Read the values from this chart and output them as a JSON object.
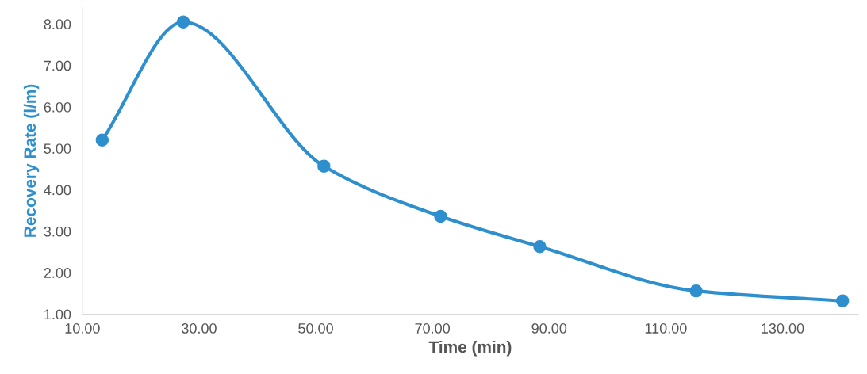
{
  "chart_data": {
    "type": "line",
    "xlabel": "Time (min)",
    "ylabel": "Recovery Rate (l/m)",
    "x": [
      13.4,
      27.3,
      51.4,
      71.4,
      88.4,
      115.2,
      140.3
    ],
    "series": [
      {
        "color": "#2e8fcf",
        "values": [
          5.2,
          8.05,
          4.57,
          3.36,
          2.63,
          1.56,
          1.32
        ]
      }
    ],
    "xlim": [
      10,
      143
    ],
    "ylim": [
      1,
      8.4
    ],
    "xticks": [
      {
        "value": 10,
        "label": "10.00"
      },
      {
        "value": 30,
        "label": "30.00"
      },
      {
        "value": 50,
        "label": "50.00"
      },
      {
        "value": 70,
        "label": "70.00"
      },
      {
        "value": 90,
        "label": "90.00"
      },
      {
        "value": 110,
        "label": "110.00"
      },
      {
        "value": 130,
        "label": "130.00"
      }
    ],
    "yticks": [
      {
        "value": 1,
        "label": "1.00"
      },
      {
        "value": 2,
        "label": "2.00"
      },
      {
        "value": 3,
        "label": "3.00"
      },
      {
        "value": 4,
        "label": "4.00"
      },
      {
        "value": 5,
        "label": "5.00"
      },
      {
        "value": 6,
        "label": "6.00"
      },
      {
        "value": 7,
        "label": "7.00"
      },
      {
        "value": 8,
        "label": "8.00"
      }
    ],
    "marker": "circle",
    "grid": false
  }
}
